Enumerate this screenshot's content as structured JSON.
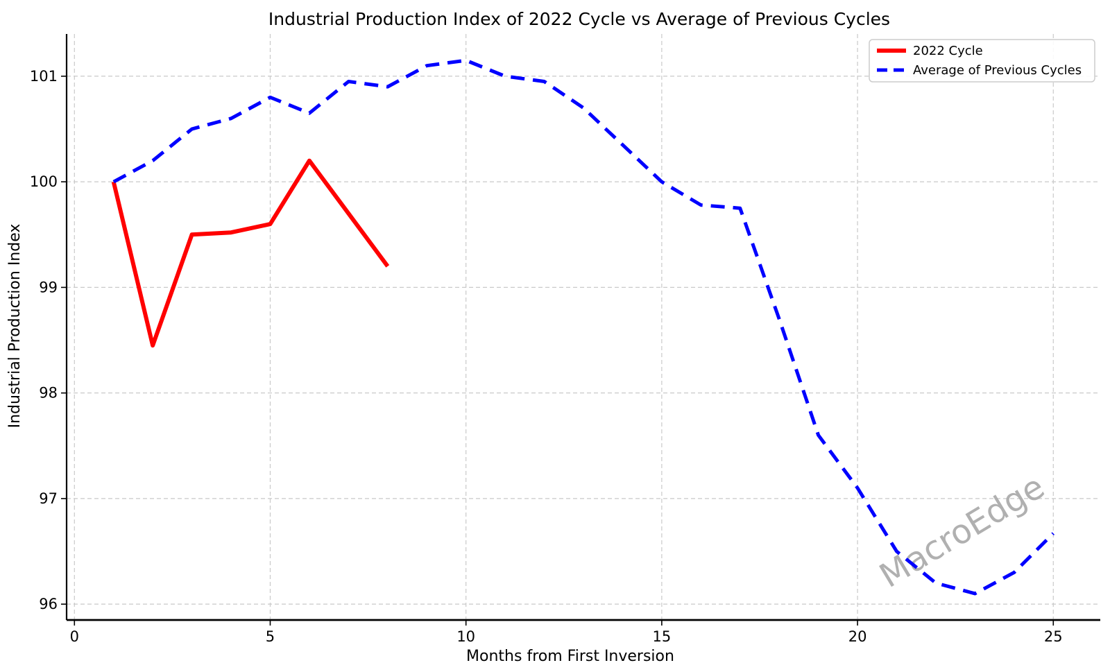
{
  "chart_data": {
    "type": "line",
    "title": "Industrial Production Index of 2022 Cycle vs Average of Previous Cycles",
    "xlabel": "Months from First Inversion",
    "ylabel": "Industrial Production Index",
    "watermark": "MacroEdge",
    "grid": true,
    "legend_position": "upper right",
    "xlim": [
      -0.2,
      26.2
    ],
    "ylim": [
      95.85,
      101.4
    ],
    "x_ticks": [
      0,
      5,
      10,
      15,
      20,
      25
    ],
    "y_ticks": [
      96,
      97,
      98,
      99,
      100,
      101
    ],
    "series": [
      {
        "name": "2022 Cycle",
        "color": "#ff0000",
        "style": "solid",
        "line_width": 6,
        "x": [
          1,
          2,
          3,
          4,
          5,
          6,
          7,
          8
        ],
        "values": [
          100.0,
          98.45,
          99.5,
          99.52,
          99.6,
          100.2,
          99.7,
          99.2
        ]
      },
      {
        "name": "Average of Previous Cycles",
        "color": "#0000ff",
        "style": "dashed",
        "line_width": 5,
        "x": [
          1,
          2,
          3,
          4,
          5,
          6,
          7,
          8,
          9,
          10,
          11,
          12,
          13,
          14,
          15,
          16,
          17,
          18,
          19,
          20,
          21,
          22,
          23,
          24,
          25
        ],
        "values": [
          100.0,
          100.2,
          100.5,
          100.6,
          100.8,
          100.65,
          100.95,
          100.9,
          101.1,
          101.15,
          101.0,
          100.95,
          100.7,
          100.35,
          100.0,
          99.78,
          99.75,
          98.7,
          97.6,
          97.1,
          96.5,
          96.2,
          96.1,
          96.3,
          96.67
        ]
      }
    ]
  }
}
